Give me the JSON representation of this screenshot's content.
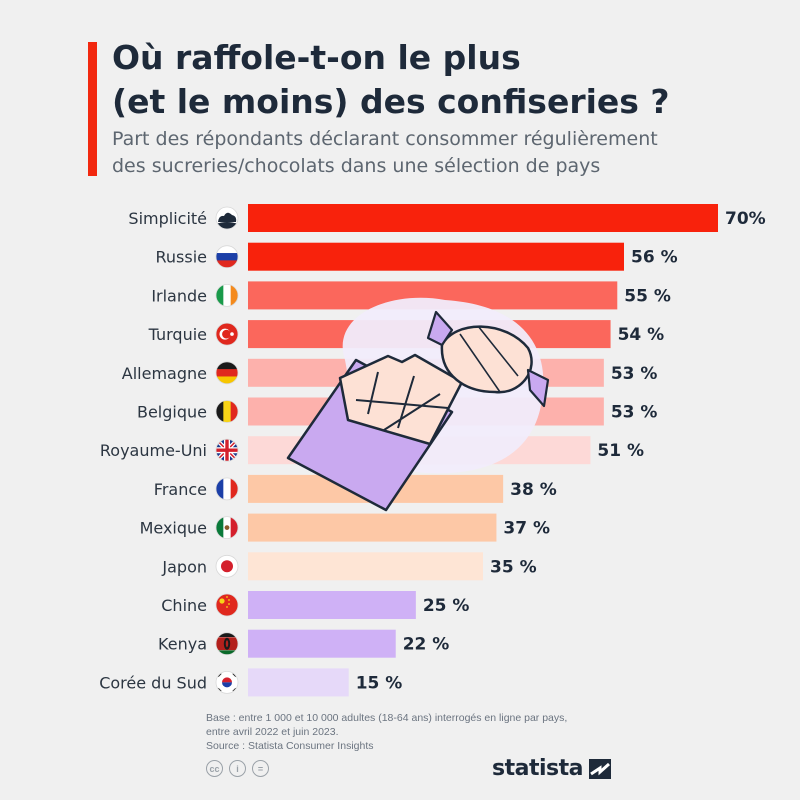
{
  "header": {
    "title_line1": "Où raffole-t-on le plus",
    "title_line2": "(et le moins) des confiseries ?",
    "subtitle_line1": "Part des répondants déclarant consommer régulièrement",
    "subtitle_line2": "des sucreries/chocolats dans une sélection de pays"
  },
  "chart_data": {
    "type": "bar",
    "orientation": "horizontal",
    "categories": [
      "Simplicité",
      "Russie",
      "Irlande",
      "Turquie",
      "Allemagne",
      "Belgique",
      "Royaume-Uni",
      "France",
      "Mexique",
      "Japon",
      "Chine",
      "Kenya",
      "Corée du Sud"
    ],
    "values": [
      70,
      56,
      55,
      54,
      53,
      53,
      51,
      38,
      37,
      35,
      25,
      22,
      15
    ],
    "value_labels": [
      "70%",
      "56 %",
      "55 %",
      "54 %",
      "53 %",
      "53 %",
      "51 %",
      "38 %",
      "37 %",
      "35 %",
      "25 %",
      "22 %",
      "15 %"
    ],
    "bar_colors": [
      "#f8220c",
      "#f8220c",
      "#fb675c",
      "#fb675c",
      "#fdb1ac",
      "#fdb1ac",
      "#fdd9d7",
      "#fdc8a6",
      "#fdc8a6",
      "#fee5d5",
      "#cfb1f6",
      "#cfb1f6",
      "#e6d9f9"
    ],
    "flags": [
      "cloud-icon",
      "russia-flag-icon",
      "ireland-flag-icon",
      "turkey-flag-icon",
      "germany-flag-icon",
      "belgium-flag-icon",
      "uk-flag-icon",
      "france-flag-icon",
      "mexico-flag-icon",
      "japan-flag-icon",
      "china-flag-icon",
      "kenya-flag-icon",
      "south-korea-flag-icon"
    ],
    "xlim": [
      0,
      70
    ],
    "grid": false,
    "xlabel": "",
    "ylabel": ""
  },
  "footnote": {
    "line1": "Base : entre 1 000 et 10 000 adultes (18-64 ans) interrogés en ligne par pays,",
    "line2": "entre avril 2022 et juin 2023.",
    "line3": "Source : Statista Consumer Insights"
  },
  "license_icons": [
    "cc-icon",
    "attribution-icon",
    "no-derivatives-icon"
  ],
  "brand": {
    "name": "statista"
  },
  "colors": {
    "accent": "#f2280f",
    "text": "#1e2a3a",
    "background": "#f0f0f0"
  }
}
